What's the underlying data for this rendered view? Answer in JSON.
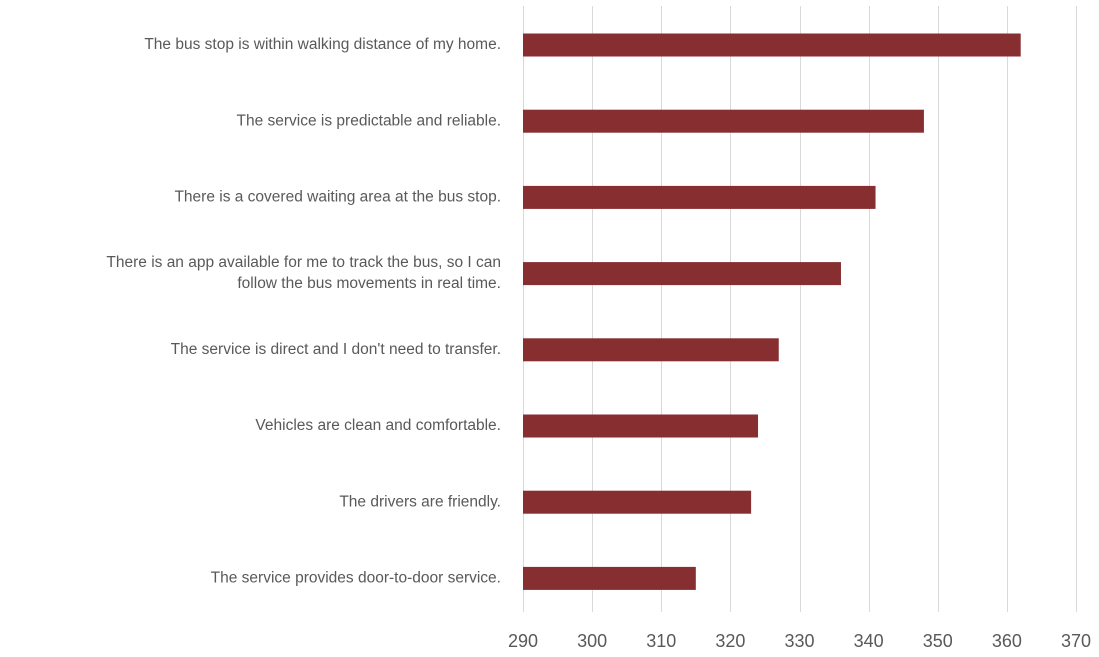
{
  "colors": {
    "bar": "#862E30",
    "grid": "#D9D9D9",
    "text": "#595959"
  },
  "chart_data": {
    "type": "bar",
    "orientation": "horizontal",
    "title": "",
    "xlabel": "",
    "ylabel": "",
    "xlim": [
      290,
      370
    ],
    "x_ticks": [
      290,
      300,
      310,
      320,
      330,
      340,
      350,
      360,
      370
    ],
    "grid": "vertical",
    "categories": [
      "The bus stop is within walking distance of my home.",
      "The service is predictable and reliable.",
      "There is a covered waiting area at the bus stop.",
      "There is an app available for me to track the bus, so I can follow the bus movements in real time.",
      "The service is direct and I don't need to transfer.",
      "Vehicles are clean and comfortable.",
      "The drivers are friendly.",
      "The service provides door-to-door service."
    ],
    "category_lines": [
      [
        "The bus stop is within walking distance of my home."
      ],
      [
        "The service is predictable and reliable."
      ],
      [
        "There is a covered waiting area at the bus stop."
      ],
      [
        "There is an app available for me to track the bus, so I can",
        "follow the bus movements in real time."
      ],
      [
        "The service is direct and I don't need to transfer."
      ],
      [
        "Vehicles are clean and comfortable."
      ],
      [
        "The drivers are friendly."
      ],
      [
        "The service provides door-to-door service."
      ]
    ],
    "values": [
      362,
      348,
      341,
      336,
      327,
      324,
      323,
      315
    ]
  }
}
